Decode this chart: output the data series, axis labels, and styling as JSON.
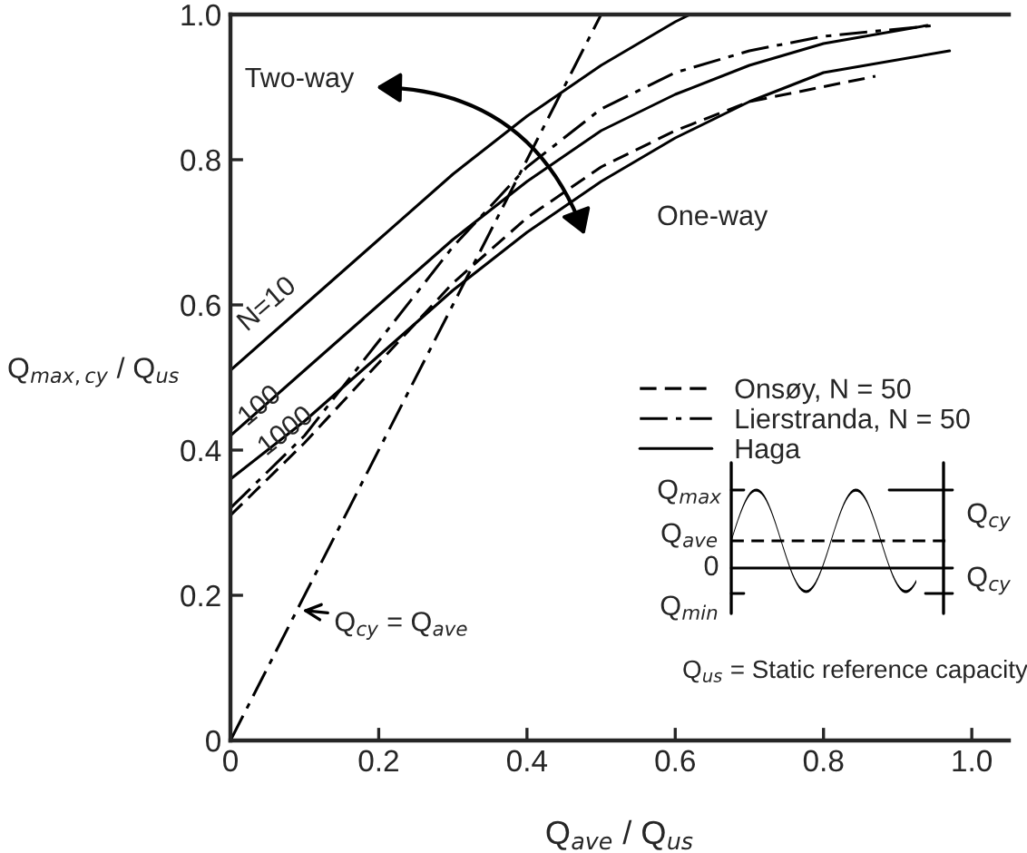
{
  "chart_data": {
    "type": "line",
    "xlabel": "Q$_{ave}$ / Q$_{us}$",
    "ylabel": "Q$_{max,cy}$ / Q$_{us}$",
    "series": [
      {
        "name": "Onsøy, N = 50",
        "color": "#000000",
        "line_style": "dashed",
        "x": [
          0,
          0.1,
          0.2,
          0.3,
          0.4,
          0.5,
          0.6,
          0.7,
          0.87
        ],
        "values": [
          0.31,
          0.41,
          0.52,
          0.63,
          0.72,
          0.79,
          0.84,
          0.88,
          0.915
        ]
      },
      {
        "name": "Lierstranda, N = 50",
        "color": "#000000",
        "line_style": "dashdot",
        "x": [
          0,
          0.1,
          0.2,
          0.3,
          0.4,
          0.5,
          0.6,
          0.7,
          0.8,
          0.95
        ],
        "values": [
          0.32,
          0.42,
          0.55,
          0.68,
          0.79,
          0.87,
          0.92,
          0.95,
          0.97,
          0.985
        ]
      },
      {
        "name": "Haga",
        "color": "#000000",
        "line_style": "solid",
        "x": [
          0,
          0.1,
          0.2,
          0.3,
          0.4,
          0.5,
          0.6,
          0.62
        ],
        "values": [
          0.51,
          0.6,
          0.69,
          0.78,
          0.86,
          0.93,
          0.99,
          1.0
        ]
      },
      {
        "color": "#000000",
        "line_style": "solid",
        "x": [
          0,
          0.1,
          0.2,
          0.3,
          0.4,
          0.5,
          0.6,
          0.7,
          0.8,
          0.94
        ],
        "values": [
          0.42,
          0.51,
          0.6,
          0.69,
          0.77,
          0.84,
          0.89,
          0.93,
          0.96,
          0.985
        ]
      },
      {
        "color": "#000000",
        "line_style": "solid",
        "x": [
          0,
          0.1,
          0.2,
          0.3,
          0.4,
          0.5,
          0.6,
          0.7,
          0.8,
          0.97
        ],
        "values": [
          0.36,
          0.44,
          0.53,
          0.62,
          0.7,
          0.77,
          0.83,
          0.88,
          0.92,
          0.95
        ]
      },
      {
        "color": "#000000",
        "line_style": "dashdot",
        "x": [
          0,
          0.5
        ],
        "values": [
          0,
          1.0
        ]
      }
    ],
    "xlim": [
      0,
      1.05
    ],
    "ylim": [
      0,
      1.0
    ],
    "xticks": [
      0,
      0.2,
      0.4,
      0.6,
      0.8,
      {
        "value": 1.0,
        "label": "1.0"
      }
    ],
    "yticks": [
      0,
      0.2,
      0.4,
      0.6,
      0.8,
      {
        "value": 1.0,
        "label": "1.0"
      }
    ],
    "grid": false,
    "legend": "center right",
    "marker": "none",
    "annotations": [
      "N=10",
      "100",
      "1000",
      {
        "text": "Q$_{cy}$ = Q$_{ave}$",
        "x": 0.09,
        "y": 0.18
      },
      "Two-way",
      "One-way",
      "Q$_{max}$",
      "Q$_{ave}$",
      "0",
      "Q$_{min}$",
      "Q$_{cy}$",
      "Q$_{cy}$",
      "Q$_{us}$ = Static reference capacity"
    ]
  }
}
